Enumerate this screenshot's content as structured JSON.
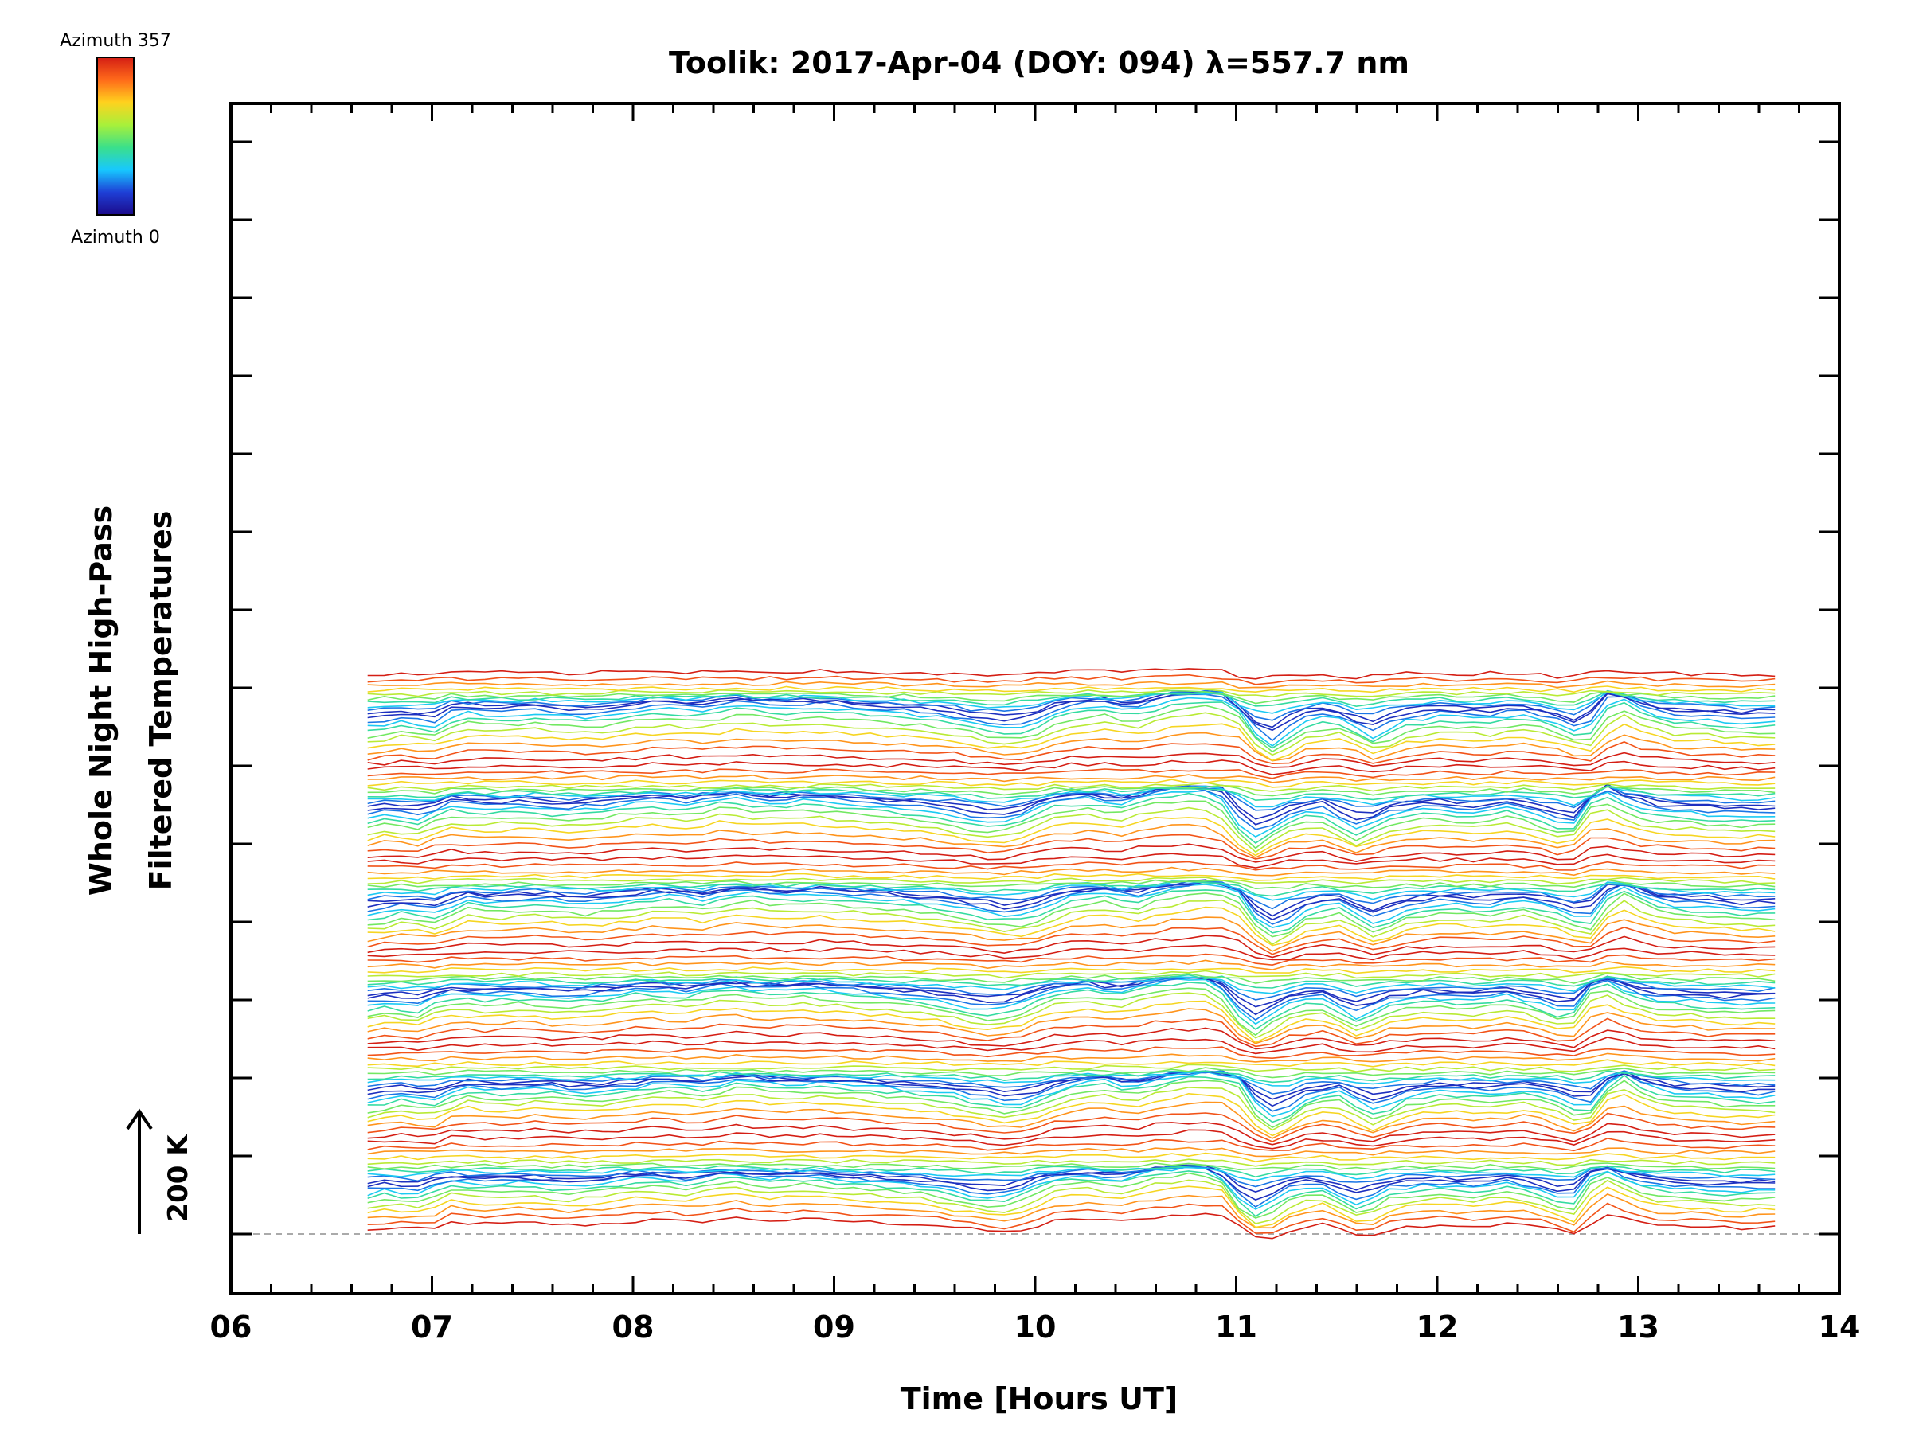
{
  "chart_data": {
    "type": "line",
    "title": "Toolik: 2017-Apr-04 (DOY: 094) λ=557.7 nm",
    "xlabel": "Time [Hours UT]",
    "ylabel_lines": [
      "Whole Night High-Pass",
      "Filtered Temperatures"
    ],
    "xlim": [
      6,
      14
    ],
    "x_ticks": [
      "06",
      "07",
      "08",
      "09",
      "10",
      "11",
      "12",
      "13",
      "14"
    ],
    "x_range_data": [
      6.68,
      13.68
    ],
    "n_traces": 120,
    "trace_offset_K": 12,
    "scale_bar": {
      "label": "200 K",
      "value_K": 200
    },
    "baseline": {
      "style": "dashed",
      "color": "#aaaaaa"
    },
    "colorbar": {
      "top_label": "Azimuth 357",
      "bottom_label": "Azimuth 0",
      "colormap": [
        "#1c0a8a",
        "#1e3fd6",
        "#17c8ff",
        "#3be08a",
        "#a8f03a",
        "#ffd21e",
        "#ff6a1a",
        "#d41e14"
      ]
    },
    "representative_profile": {
      "x": [
        6.68,
        6.8,
        7.0,
        7.1,
        7.3,
        7.5,
        7.7,
        7.9,
        8.1,
        8.3,
        8.5,
        8.7,
        8.9,
        9.1,
        9.3,
        9.5,
        9.7,
        9.85,
        10.0,
        10.1,
        10.3,
        10.45,
        10.6,
        10.8,
        10.95,
        11.05,
        11.15,
        11.3,
        11.45,
        11.65,
        11.8,
        12.0,
        12.2,
        12.4,
        12.55,
        12.7,
        12.85,
        12.95,
        13.1,
        13.3,
        13.5,
        13.68
      ],
      "y": [
        15,
        30,
        18,
        55,
        45,
        52,
        40,
        50,
        65,
        55,
        75,
        62,
        68,
        58,
        50,
        42,
        20,
        8,
        30,
        60,
        72,
        55,
        80,
        95,
        85,
        10,
        -30,
        25,
        45,
        -10,
        30,
        45,
        35,
        50,
        28,
        -5,
        100,
        70,
        40,
        35,
        25,
        30
      ]
    }
  }
}
